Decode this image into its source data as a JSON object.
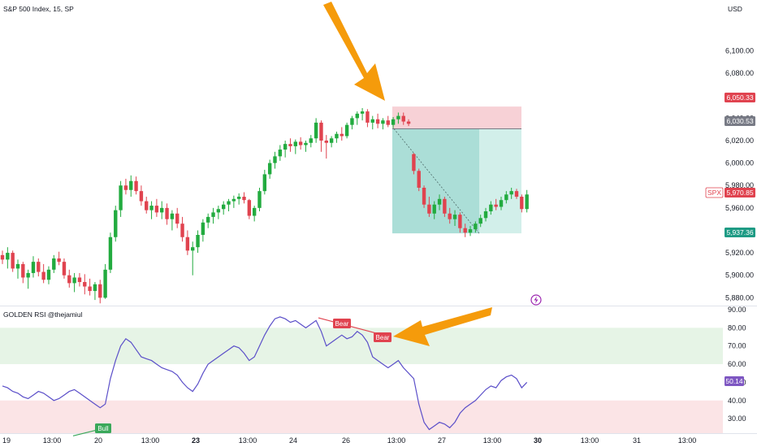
{
  "header": {
    "symbol": "S&P 500 Index, 15, SP",
    "currency": "USD",
    "indicator": "GOLDEN RSI @thejamiul"
  },
  "colors": {
    "up": "#26a69a",
    "up_candle": "#22ab3f",
    "down": "#e0434f",
    "rsi_line": "#5b4fc9",
    "arrow": "#f59b0b",
    "stop_zone": "#f6c9cf",
    "target_zone": "#a7dcd5",
    "target_zone_light": "#d2efea",
    "ob_zone": "#e6f4e6",
    "os_zone": "#fbe4e6"
  },
  "price_axis": {
    "ticks": [
      "6,100.00",
      "6,080.00",
      "6,060.00",
      "6,040.00",
      "6,020.00",
      "6,000.00",
      "5,980.00",
      "5,960.00",
      "5,940.00",
      "5,920.00",
      "5,900.00",
      "5,880.00"
    ],
    "range": [
      5873,
      6125
    ]
  },
  "rsi_axis": {
    "ticks": [
      "90.00",
      "80.00",
      "70.00",
      "60.00",
      "50.00",
      "40.00",
      "30.00"
    ],
    "range": [
      22,
      90
    ],
    "overbought_zone": [
      60,
      80
    ],
    "oversold_zone": [
      20,
      40
    ]
  },
  "price_tags": {
    "stop": "6,050.33",
    "entry": "6,030.53",
    "symbol_tag": "SPX",
    "last": "5,970.85",
    "target": "5,937.36",
    "rsi_last": "50.14"
  },
  "x_axis": {
    "labels": [
      {
        "text": "19",
        "bold": false
      },
      {
        "text": "13:00",
        "bold": false
      },
      {
        "text": "20",
        "bold": false
      },
      {
        "text": "13:00",
        "bold": false
      },
      {
        "text": "23",
        "bold": true
      },
      {
        "text": "13:00",
        "bold": false
      },
      {
        "text": "24",
        "bold": false
      },
      {
        "text": "26",
        "bold": false
      },
      {
        "text": "13:00",
        "bold": false
      },
      {
        "text": "27",
        "bold": false
      },
      {
        "text": "13:00",
        "bold": false
      },
      {
        "text": "30",
        "bold": true
      },
      {
        "text": "13:00",
        "bold": false
      },
      {
        "text": "31",
        "bold": false
      },
      {
        "text": "13:00",
        "bold": false
      }
    ]
  },
  "rsi_labels": {
    "bull": "Bull",
    "bear1": "Bear",
    "bear2": "Bear"
  },
  "chart_data": {
    "type": "candlestick",
    "ohlc": [
      [
        5918,
        5922,
        5910,
        5914
      ],
      [
        5914,
        5925,
        5906,
        5920
      ],
      [
        5920,
        5922,
        5903,
        5906
      ],
      [
        5906,
        5914,
        5897,
        5910
      ],
      [
        5910,
        5912,
        5893,
        5898
      ],
      [
        5898,
        5905,
        5888,
        5902
      ],
      [
        5902,
        5917,
        5898,
        5912
      ],
      [
        5912,
        5915,
        5899,
        5903
      ],
      [
        5903,
        5910,
        5893,
        5896
      ],
      [
        5896,
        5908,
        5892,
        5905
      ],
      [
        5905,
        5918,
        5902,
        5915
      ],
      [
        5915,
        5921,
        5909,
        5912
      ],
      [
        5912,
        5915,
        5897,
        5900
      ],
      [
        5900,
        5905,
        5889,
        5893
      ],
      [
        5893,
        5902,
        5885,
        5898
      ],
      [
        5898,
        5902,
        5890,
        5894
      ],
      [
        5894,
        5901,
        5883,
        5890
      ],
      [
        5890,
        5897,
        5882,
        5886
      ],
      [
        5886,
        5894,
        5878,
        5892
      ],
      [
        5892,
        5896,
        5875,
        5880
      ],
      [
        5880,
        5910,
        5879,
        5905
      ],
      [
        5905,
        5938,
        5902,
        5934
      ],
      [
        5934,
        5962,
        5930,
        5958
      ],
      [
        5958,
        5984,
        5952,
        5980
      ],
      [
        5980,
        5986,
        5972,
        5976
      ],
      [
        5976,
        5989,
        5970,
        5984
      ],
      [
        5984,
        5988,
        5972,
        5975
      ],
      [
        5975,
        5980,
        5962,
        5966
      ],
      [
        5966,
        5970,
        5955,
        5958
      ],
      [
        5958,
        5966,
        5950,
        5962
      ],
      [
        5962,
        5968,
        5952,
        5956
      ],
      [
        5956,
        5966,
        5950,
        5960
      ],
      [
        5960,
        5964,
        5945,
        5950
      ],
      [
        5950,
        5958,
        5940,
        5955
      ],
      [
        5955,
        5960,
        5942,
        5946
      ],
      [
        5946,
        5952,
        5930,
        5934
      ],
      [
        5934,
        5940,
        5918,
        5922
      ],
      [
        5922,
        5930,
        5900,
        5925
      ],
      [
        5925,
        5940,
        5920,
        5936
      ],
      [
        5936,
        5950,
        5930,
        5947
      ],
      [
        5947,
        5955,
        5942,
        5952
      ],
      [
        5952,
        5960,
        5946,
        5956
      ],
      [
        5956,
        5962,
        5950,
        5959
      ],
      [
        5959,
        5966,
        5954,
        5963
      ],
      [
        5963,
        5968,
        5957,
        5966
      ],
      [
        5966,
        5971,
        5960,
        5968
      ],
      [
        5968,
        5973,
        5963,
        5970
      ],
      [
        5970,
        5974,
        5964,
        5967
      ],
      [
        5967,
        5968,
        5950,
        5953
      ],
      [
        5953,
        5962,
        5948,
        5960
      ],
      [
        5960,
        5978,
        5957,
        5975
      ],
      [
        5975,
        5994,
        5972,
        5990
      ],
      [
        5990,
        6003,
        5986,
        6000
      ],
      [
        6000,
        6010,
        5995,
        6006
      ],
      [
        6006,
        6016,
        6002,
        6012
      ],
      [
        6012,
        6020,
        6005,
        6017
      ],
      [
        6017,
        6022,
        6010,
        6015
      ],
      [
        6015,
        6021,
        6008,
        6019
      ],
      [
        6019,
        6023,
        6012,
        6016
      ],
      [
        6016,
        6020,
        6010,
        6018
      ],
      [
        6018,
        6025,
        6014,
        6022
      ],
      [
        6022,
        6040,
        6018,
        6036
      ],
      [
        6036,
        6038,
        6010,
        6020
      ],
      [
        6020,
        6025,
        6004,
        6018
      ],
      [
        6018,
        6024,
        6014,
        6022
      ],
      [
        6022,
        6028,
        6018,
        6026
      ],
      [
        6026,
        6032,
        6020,
        6024
      ],
      [
        6024,
        6036,
        6022,
        6034
      ],
      [
        6034,
        6042,
        6030,
        6040
      ],
      [
        6040,
        6046,
        6034,
        6044
      ],
      [
        6044,
        6049,
        6038,
        6046
      ],
      [
        6046,
        6048,
        6032,
        6036
      ],
      [
        6036,
        6042,
        6030,
        6039
      ],
      [
        6039,
        6044,
        6031,
        6035
      ],
      [
        6035,
        6040,
        6030,
        6038
      ],
      [
        6038,
        6042,
        6032,
        6034
      ],
      [
        6034,
        6041,
        6031,
        6039
      ],
      [
        6039,
        6045,
        6035,
        6042
      ],
      [
        6042,
        6045,
        6034,
        6037
      ],
      [
        6037,
        6039,
        6033,
        6035
      ],
      [
        6008,
        6009,
        5990,
        5993
      ],
      [
        5993,
        5995,
        5975,
        5978
      ],
      [
        5978,
        5980,
        5960,
        5963
      ],
      [
        5963,
        5970,
        5952,
        5955
      ],
      [
        5955,
        5966,
        5950,
        5963
      ],
      [
        5963,
        5972,
        5958,
        5968
      ],
      [
        5968,
        5970,
        5952,
        5955
      ],
      [
        5955,
        5960,
        5946,
        5950
      ],
      [
        5950,
        5958,
        5944,
        5954
      ],
      [
        5954,
        5956,
        5938,
        5942
      ],
      [
        5942,
        5946,
        5934,
        5938
      ],
      [
        5938,
        5944,
        5935,
        5941
      ],
      [
        5941,
        5948,
        5938,
        5946
      ],
      [
        5946,
        5954,
        5943,
        5951
      ],
      [
        5951,
        5960,
        5948,
        5957
      ],
      [
        5957,
        5966,
        5954,
        5963
      ],
      [
        5963,
        5968,
        5958,
        5961
      ],
      [
        5961,
        5970,
        5958,
        5967
      ],
      [
        5967,
        5975,
        5964,
        5972
      ],
      [
        5972,
        5978,
        5968,
        5975
      ],
      [
        5975,
        5977,
        5968,
        5970
      ],
      [
        5970,
        5972,
        5956,
        5959
      ],
      [
        5959,
        5976,
        5956,
        5972
      ]
    ],
    "ohlc_units": "price (index points)",
    "trade": {
      "stop": 6050.33,
      "entry": 6030.53,
      "target": 5937.36
    },
    "rsi_series": [
      48,
      47,
      45,
      44,
      42,
      41,
      43,
      45,
      44,
      42,
      40,
      41,
      43,
      45,
      46,
      44,
      42,
      40,
      38,
      36,
      38,
      52,
      62,
      70,
      74,
      72,
      68,
      64,
      63,
      62,
      60,
      58,
      57,
      56,
      54,
      50,
      47,
      45,
      49,
      55,
      60,
      62,
      64,
      66,
      68,
      70,
      69,
      66,
      62,
      64,
      70,
      76,
      81,
      85,
      86,
      85,
      83,
      84,
      82,
      80,
      82,
      84,
      78,
      70,
      72,
      74,
      76,
      74,
      75,
      78,
      76,
      72,
      64,
      62,
      60,
      58,
      60,
      62,
      58,
      55,
      52,
      38,
      28,
      24,
      26,
      28,
      27,
      25,
      28,
      33,
      36,
      38,
      40,
      43,
      46,
      48,
      47,
      51,
      53,
      54,
      52,
      47,
      50
    ],
    "rsi_last": 50.14,
    "rsi_bounds": [
      22,
      90
    ]
  }
}
